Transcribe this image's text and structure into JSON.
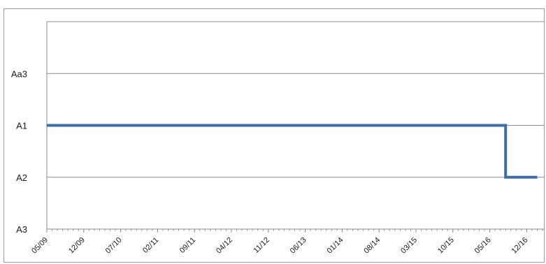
{
  "chart_data": {
    "type": "line",
    "title": "",
    "xlabel": "",
    "ylabel": "",
    "y_categories": [
      "A3",
      "A2",
      "A1",
      "Aa3"
    ],
    "x_tick_labels": [
      "05/09",
      "12/09",
      "07/10",
      "02/11",
      "09/11",
      "04/12",
      "11/12",
      "06/13",
      "01/14",
      "08/14",
      "03/15",
      "10/15",
      "05/16",
      "12/16"
    ],
    "x_range": [
      "05/09",
      "02/17"
    ],
    "grid": "horizontal",
    "legend": "none",
    "series": [
      {
        "color": "#3d6ea8",
        "points": [
          {
            "x": "05/09",
            "y": "A1"
          },
          {
            "x": "08/16",
            "y": "A1"
          },
          {
            "x": "08/16",
            "y": "A2"
          },
          {
            "x": "02/17",
            "y": "A2"
          }
        ]
      }
    ]
  }
}
